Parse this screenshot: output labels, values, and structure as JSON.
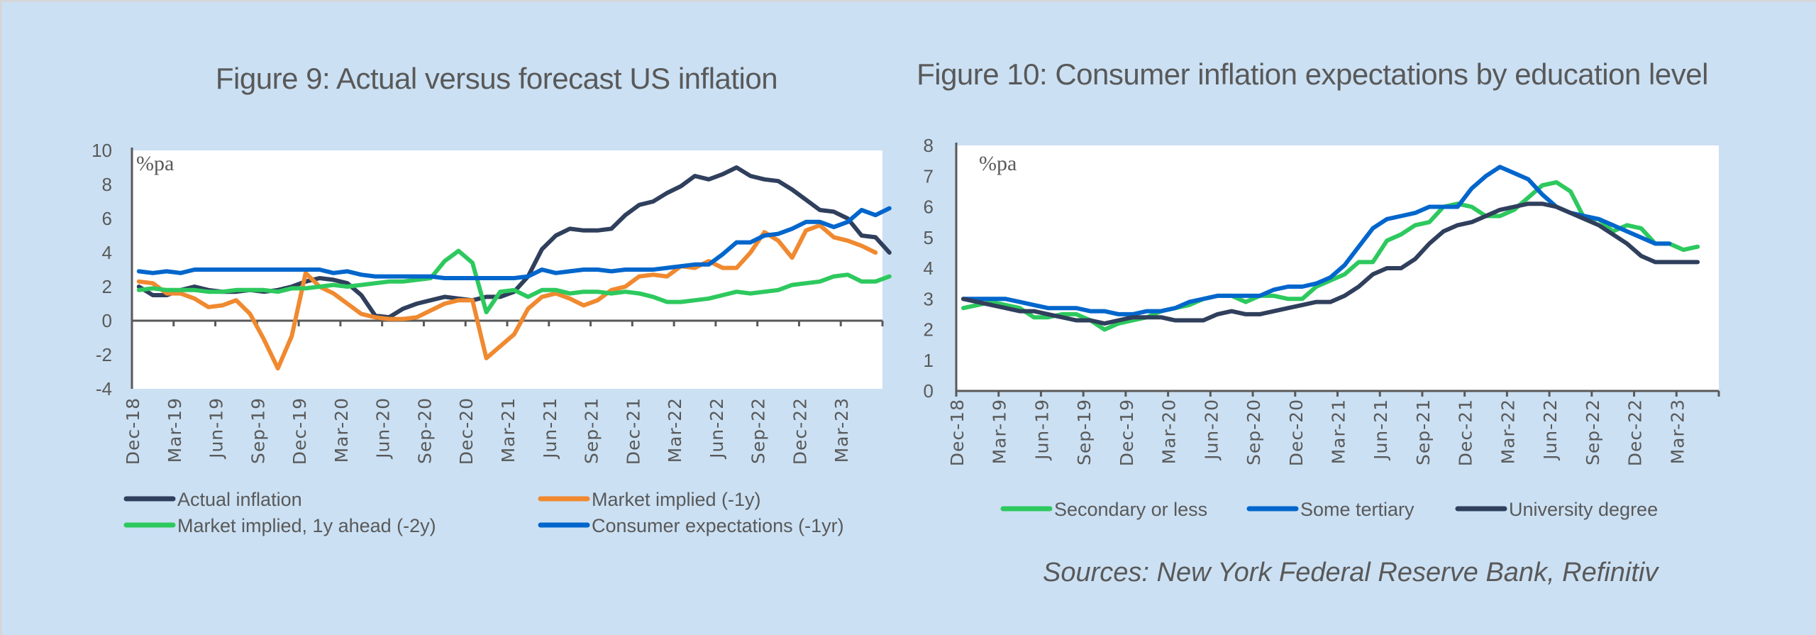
{
  "chart_data": [
    {
      "type": "line",
      "title": "Figure 9: Actual versus forecast US inflation",
      "unit_label": "%pa",
      "xlabel": "",
      "ylabel": "%pa",
      "ylim": [
        -4,
        10
      ],
      "yticks": [
        -4,
        -2,
        0,
        2,
        4,
        6,
        8,
        10
      ],
      "x_tick_labels": [
        "Dec-18",
        "Mar-19",
        "Jun-19",
        "Sep-19",
        "Dec-19",
        "Mar-20",
        "Jun-20",
        "Sep-20",
        "Dec-20",
        "Mar-21",
        "Jun-21",
        "Sep-21",
        "Dec-21",
        "Mar-22",
        "Jun-22",
        "Sep-22",
        "Dec-22",
        "Mar-23"
      ],
      "x_start": "Dec-18",
      "x_end": "May-23",
      "frequency": "monthly",
      "grid": false,
      "legend_position": "bottom",
      "series": [
        {
          "name": "Actual inflation",
          "color": "#2f3f5c",
          "values": [
            2.0,
            1.5,
            1.5,
            1.8,
            2.0,
            1.8,
            1.7,
            1.7,
            1.8,
            1.7,
            1.8,
            2.0,
            2.3,
            2.5,
            2.4,
            2.2,
            1.5,
            0.3,
            0.2,
            0.7,
            1.0,
            1.2,
            1.4,
            1.3,
            1.2,
            1.4,
            1.4,
            1.7,
            2.6,
            4.2,
            5.0,
            5.4,
            5.3,
            5.3,
            5.4,
            6.2,
            6.8,
            7.0,
            7.5,
            7.9,
            8.5,
            8.3,
            8.6,
            9.0,
            8.5,
            8.3,
            8.2,
            7.7,
            7.1,
            6.5,
            6.4,
            6.0,
            5.0,
            4.9,
            4.0
          ]
        },
        {
          "name": "Market implied (-1y)",
          "color": "#f0892f",
          "values": [
            2.3,
            2.2,
            1.6,
            1.6,
            1.3,
            0.8,
            0.9,
            1.2,
            0.4,
            -1.1,
            -2.8,
            -0.9,
            2.8,
            2.0,
            1.6,
            1.0,
            0.4,
            0.2,
            0.1,
            0.1,
            0.2,
            0.6,
            1.0,
            1.2,
            1.2,
            -2.2,
            -1.5,
            -0.8,
            0.7,
            1.4,
            1.6,
            1.3,
            0.9,
            1.2,
            1.8,
            2.0,
            2.6,
            2.7,
            2.6,
            3.2,
            3.1,
            3.5,
            3.1,
            3.1,
            4.0,
            5.2,
            4.7,
            3.7,
            5.3,
            5.6,
            4.9,
            4.7,
            4.4,
            4.0
          ]
        },
        {
          "name": "Market implied, 1y ahead (-2y)",
          "color": "#2dc95e",
          "values": [
            1.8,
            1.9,
            1.8,
            1.8,
            1.8,
            1.7,
            1.7,
            1.8,
            1.8,
            1.8,
            1.7,
            1.9,
            1.9,
            2.0,
            2.1,
            2.0,
            2.1,
            2.2,
            2.3,
            2.3,
            2.4,
            2.5,
            3.5,
            4.1,
            3.4,
            0.5,
            1.7,
            1.8,
            1.4,
            1.8,
            1.8,
            1.6,
            1.7,
            1.7,
            1.6,
            1.7,
            1.6,
            1.4,
            1.1,
            1.1,
            1.2,
            1.3,
            1.5,
            1.7,
            1.6,
            1.7,
            1.8,
            2.1,
            2.2,
            2.3,
            2.6,
            2.7,
            2.3,
            2.3,
            2.6
          ]
        },
        {
          "name": "Consumer expectations (-1yr)",
          "color": "#0066cc",
          "values": [
            2.9,
            2.8,
            2.9,
            2.8,
            3.0,
            3.0,
            3.0,
            3.0,
            3.0,
            3.0,
            3.0,
            3.0,
            3.0,
            3.0,
            2.8,
            2.9,
            2.7,
            2.6,
            2.6,
            2.6,
            2.6,
            2.6,
            2.5,
            2.5,
            2.5,
            2.5,
            2.5,
            2.5,
            2.6,
            3.0,
            2.8,
            2.9,
            3.0,
            3.0,
            2.9,
            3.0,
            3.0,
            3.0,
            3.1,
            3.2,
            3.3,
            3.3,
            3.9,
            4.6,
            4.6,
            5.0,
            5.1,
            5.4,
            5.8,
            5.8,
            5.5,
            5.8,
            6.5,
            6.2,
            6.6
          ]
        }
      ]
    },
    {
      "type": "line",
      "title": "Figure 10: Consumer inflation expectations by education level",
      "unit_label": "%pa",
      "xlabel": "",
      "ylabel": "%pa",
      "ylim": [
        0,
        8
      ],
      "yticks": [
        0,
        1,
        2,
        3,
        4,
        5,
        6,
        7,
        8
      ],
      "x_tick_labels": [
        "Dec-18",
        "Mar-19",
        "Jun-19",
        "Sep-19",
        "Dec-19",
        "Mar-20",
        "Jun-20",
        "Sep-20",
        "Dec-20",
        "Mar-21",
        "Jun-21",
        "Sep-21",
        "Dec-21",
        "Mar-22",
        "Jun-22",
        "Sep-22",
        "Dec-22",
        "Mar-23"
      ],
      "x_start": "Dec-18",
      "x_end": "May-23",
      "frequency": "monthly",
      "grid": false,
      "legend_position": "bottom",
      "series": [
        {
          "name": "Secondary or less",
          "color": "#2dc95e",
          "values": [
            2.7,
            2.8,
            2.9,
            2.8,
            2.7,
            2.4,
            2.4,
            2.5,
            2.5,
            2.3,
            2.0,
            2.2,
            2.3,
            2.4,
            2.6,
            2.7,
            2.8,
            3.0,
            3.1,
            3.1,
            2.9,
            3.1,
            3.1,
            3.0,
            3.0,
            3.4,
            3.6,
            3.8,
            4.2,
            4.2,
            4.9,
            5.1,
            5.4,
            5.5,
            6.0,
            6.1,
            6.0,
            5.7,
            5.7,
            5.9,
            6.3,
            6.7,
            6.8,
            6.5,
            5.6,
            5.6,
            5.2,
            5.4,
            5.3,
            4.8,
            4.8,
            4.6,
            4.7
          ]
        },
        {
          "name": "Some tertiary",
          "color": "#0066cc",
          "values": [
            3.0,
            3.0,
            3.0,
            3.0,
            2.9,
            2.8,
            2.7,
            2.7,
            2.7,
            2.6,
            2.6,
            2.5,
            2.5,
            2.6,
            2.6,
            2.7,
            2.9,
            3.0,
            3.1,
            3.1,
            3.1,
            3.1,
            3.3,
            3.4,
            3.4,
            3.5,
            3.7,
            4.1,
            4.7,
            5.3,
            5.6,
            5.7,
            5.8,
            6.0,
            6.0,
            6.0,
            6.6,
            7.0,
            7.3,
            7.1,
            6.9,
            6.4,
            6.0,
            5.8,
            5.7,
            5.6,
            5.4,
            5.2,
            5.0,
            4.8,
            4.8
          ]
        },
        {
          "name": "University degree",
          "color": "#2f3f5c",
          "values": [
            3.0,
            2.9,
            2.8,
            2.7,
            2.6,
            2.6,
            2.5,
            2.4,
            2.3,
            2.3,
            2.2,
            2.3,
            2.4,
            2.4,
            2.4,
            2.3,
            2.3,
            2.3,
            2.5,
            2.6,
            2.5,
            2.5,
            2.6,
            2.7,
            2.8,
            2.9,
            2.9,
            3.1,
            3.4,
            3.8,
            4.0,
            4.0,
            4.3,
            4.8,
            5.2,
            5.4,
            5.5,
            5.7,
            5.9,
            6.0,
            6.1,
            6.1,
            6.0,
            5.8,
            5.6,
            5.4,
            5.1,
            4.8,
            4.4,
            4.2,
            4.2,
            4.2,
            4.2
          ]
        }
      ]
    }
  ],
  "sources": "Sources: New York Federal Reserve Bank, Refinitiv"
}
